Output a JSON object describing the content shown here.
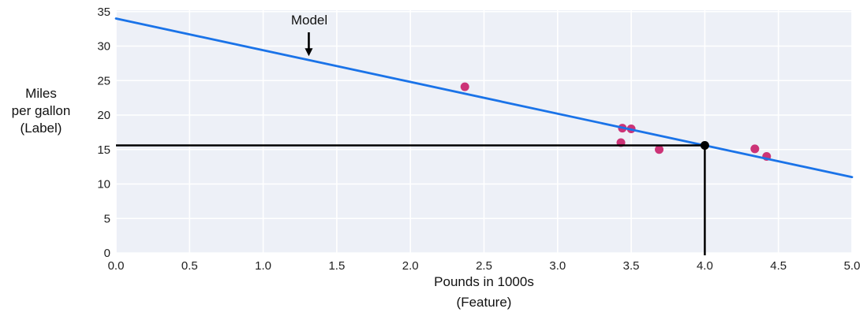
{
  "figure": {
    "background": "#ffffff",
    "plot_background": "#edf0f7",
    "grid_color": "#ffffff",
    "tick_color": "#212121"
  },
  "chart_data": {
    "type": "scatter",
    "title": "",
    "xlabel": "Pounds in 1000s",
    "xlabel_sub": "(Feature)",
    "ylabel_lines": [
      "Miles",
      "per gallon",
      "(Label)"
    ],
    "xlim": [
      0,
      5.0
    ],
    "ylim": [
      0,
      35.2
    ],
    "grid": true,
    "x_ticks": [
      {
        "v": 0.0,
        "label": "0.0"
      },
      {
        "v": 0.5,
        "label": "0.5"
      },
      {
        "v": 1.0,
        "label": "1.0"
      },
      {
        "v": 1.5,
        "label": "1.5"
      },
      {
        "v": 2.0,
        "label": "2.0"
      },
      {
        "v": 2.5,
        "label": "2.5"
      },
      {
        "v": 3.0,
        "label": "3.0"
      },
      {
        "v": 3.5,
        "label": "3.5"
      },
      {
        "v": 4.0,
        "label": "4.0"
      },
      {
        "v": 4.5,
        "label": "4.5"
      },
      {
        "v": 5.0,
        "label": "5.0"
      }
    ],
    "y_ticks": [
      {
        "v": 0,
        "label": "0"
      },
      {
        "v": 5,
        "label": "5"
      },
      {
        "v": 10,
        "label": "10"
      },
      {
        "v": 15,
        "label": "15"
      },
      {
        "v": 20,
        "label": "20"
      },
      {
        "v": 25,
        "label": "25"
      },
      {
        "v": 30,
        "label": "30"
      },
      {
        "v": 35,
        "label": "35"
      }
    ],
    "points": {
      "name": "cars",
      "color": "#cc3377",
      "radius": 5.5,
      "data": [
        [
          2.37,
          24.1
        ],
        [
          3.44,
          18.1
        ],
        [
          3.5,
          18.0
        ],
        [
          3.43,
          16.0
        ],
        [
          3.69,
          15.0
        ],
        [
          4.34,
          15.1
        ],
        [
          4.42,
          14.0
        ]
      ]
    },
    "model_line": {
      "name": "Model",
      "color": "#1a73e8",
      "intercept": 34,
      "slope": -4.6,
      "x_range": [
        0,
        5.0
      ],
      "width": 2.8
    },
    "prediction": {
      "x": 4.0,
      "y": 15.6,
      "color": "#000000",
      "line_width": 2.5,
      "dot_radius": 5.5
    },
    "annotation": {
      "text": "Model",
      "x": 1.31,
      "arrow_tail_y": 32.0,
      "arrow_tip_y": 28.55
    }
  }
}
